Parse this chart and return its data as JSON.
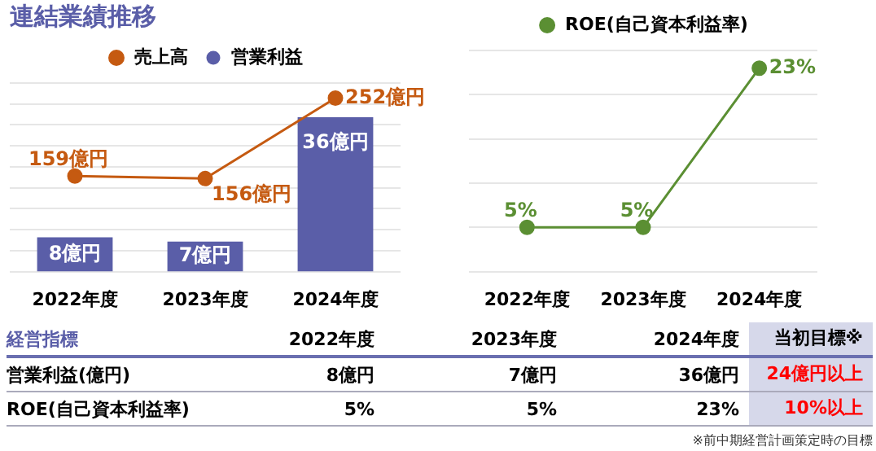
{
  "chart_data": [
    {
      "type": "bar",
      "title": "連結業績推移",
      "categories": [
        "2022年度",
        "2023年度",
        "2024年度"
      ],
      "series": [
        {
          "name": "売上高",
          "type": "line",
          "color": "#c55a11",
          "values": [
            159,
            156,
            252
          ],
          "value_labels": [
            "159億円",
            "156億円",
            "252億円"
          ]
        },
        {
          "name": "営業利益",
          "type": "bar",
          "axis": "y2",
          "color": "#5a5ea8",
          "values": [
            8,
            7,
            36
          ],
          "value_labels": [
            "8億円",
            "7億円",
            "36億円"
          ]
        }
      ],
      "ylim": [
        45,
        270
      ],
      "yticks": [
        45,
        70,
        95,
        120,
        145,
        170,
        195,
        220,
        245,
        270
      ],
      "y2lim": [
        0,
        44
      ],
      "grid": "y",
      "legend": "top",
      "tick_labels": "x",
      "marker": "circle"
    },
    {
      "type": "line",
      "categories": [
        "2022年度",
        "2023年度",
        "2024年度"
      ],
      "series": [
        {
          "name": "ROE(自己資本利益率)",
          "color": "#5b8f33",
          "values": [
            5,
            5,
            23
          ],
          "value_labels": [
            "5%",
            "5%",
            "23%"
          ]
        }
      ],
      "ylim": [
        0,
        25
      ],
      "yticks": [
        0,
        5,
        10,
        15,
        20,
        25
      ],
      "grid": "y",
      "legend": "top",
      "tick_labels": "x",
      "marker": "circle"
    },
    {
      "type": "other",
      "annotations": [
        "経営指標",
        "2022年度",
        "2023年度",
        "2024年度",
        "当初目標※",
        "営業利益(億円)",
        "8億円",
        "7億円",
        "36億円",
        "24億円以上",
        "ROE(自己資本利益率)",
        "5%",
        "5%",
        "23%",
        "10%以上",
        "※前中期経営計画策定時の目標"
      ]
    }
  ]
}
